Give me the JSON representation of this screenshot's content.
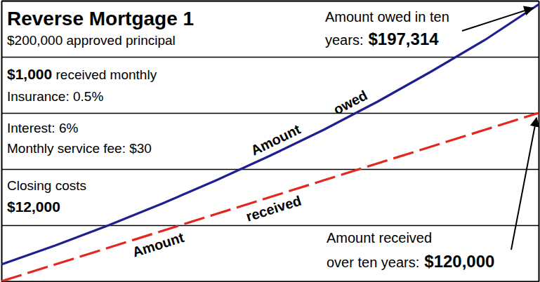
{
  "chart_data": {
    "type": "line",
    "title": "Reverse Mortgage 1",
    "subtitle": "$200,000 approved principal",
    "annotations": [
      [
        {
          "strong": "$1,000"
        },
        " received monthly"
      ],
      [
        "Insurance: 0.5%"
      ],
      [
        "Interest: 6%"
      ],
      [
        "Monthly service fee: $30"
      ],
      [
        "Closing costs"
      ],
      [
        {
          "strong": "$12,000"
        }
      ]
    ],
    "x": [
      0,
      1,
      2,
      3,
      4,
      5,
      6,
      7,
      8,
      9,
      10
    ],
    "xlim": [
      0,
      10
    ],
    "xticks": [
      0,
      10
    ],
    "ylim": [
      0,
      200000
    ],
    "yticks": [
      0,
      40000,
      80000,
      120000,
      160000,
      200000
    ],
    "grid": true,
    "tick_labels": false,
    "data_labels": true,
    "series": [
      {
        "name": "Amount owed",
        "color": "#1f1f8f",
        "line_style": "solid",
        "values": [
          12000,
          25500,
          40000,
          55500,
          72000,
          89500,
          108000,
          128000,
          149500,
          172000,
          197314
        ],
        "value_labels": [
          null,
          null,
          null,
          null,
          null,
          null,
          null,
          null,
          null,
          null,
          "$197,314"
        ],
        "annotation": [
          "Amount owed in ten",
          "years:"
        ]
      },
      {
        "name": "Amount received",
        "color": "#e5261f",
        "line_style": "dashed",
        "values": [
          0,
          12000,
          24000,
          36000,
          48000,
          60000,
          72000,
          84000,
          96000,
          108000,
          120000
        ],
        "value_labels": [
          null,
          null,
          null,
          null,
          null,
          null,
          null,
          null,
          null,
          null,
          "$120,000"
        ],
        "annotation": [
          "Amount received",
          "over ten years:"
        ]
      }
    ]
  }
}
